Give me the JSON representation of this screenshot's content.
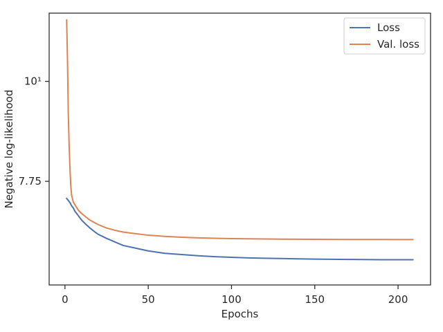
{
  "chart_data": {
    "type": "line",
    "title": "",
    "xlabel": "Epochs",
    "ylabel": "Negative log-likelihood",
    "xlim": [
      -9.5,
      219.5
    ],
    "ylim": [
      5.95,
      11.9
    ],
    "yscale": "log",
    "grid": false,
    "legend_position": "top-right",
    "x_ticks": [
      0,
      50,
      100,
      150,
      200
    ],
    "x_tick_labels": [
      "0",
      "50",
      "100",
      "150",
      "200"
    ],
    "y_ticks": [
      7.75,
      10
    ],
    "y_tick_labels": [
      "7.75",
      "10¹"
    ],
    "series": [
      {
        "name": "Loss",
        "color": "#4c72b0",
        "x": [
          1,
          2,
          3,
          4,
          5,
          6,
          7,
          8,
          10,
          12,
          15,
          18,
          20,
          25,
          30,
          35,
          40,
          45,
          50,
          55,
          60,
          70,
          80,
          90,
          100,
          110,
          120,
          130,
          140,
          150,
          160,
          170,
          180,
          190,
          200,
          209
        ],
        "y": [
          7.42,
          7.38,
          7.34,
          7.28,
          7.24,
          7.18,
          7.14,
          7.1,
          7.02,
          6.96,
          6.88,
          6.81,
          6.77,
          6.7,
          6.64,
          6.58,
          6.55,
          6.52,
          6.49,
          6.47,
          6.45,
          6.43,
          6.41,
          6.395,
          6.385,
          6.375,
          6.37,
          6.365,
          6.36,
          6.355,
          6.352,
          6.35,
          6.348,
          6.346,
          6.345,
          6.345
        ]
      },
      {
        "name": "Val. loss",
        "color": "#dd8452",
        "x": [
          1,
          1.5,
          2,
          2.5,
          3,
          3.5,
          4,
          5,
          6,
          7,
          8,
          10,
          12,
          15,
          18,
          20,
          25,
          30,
          35,
          40,
          50,
          60,
          70,
          80,
          90,
          100,
          110,
          120,
          130,
          140,
          150,
          160,
          170,
          180,
          190,
          200,
          209
        ],
        "y": [
          11.7,
          10.6,
          9.2,
          8.5,
          8.0,
          7.66,
          7.48,
          7.35,
          7.3,
          7.25,
          7.2,
          7.14,
          7.09,
          7.02,
          6.97,
          6.94,
          6.88,
          6.84,
          6.81,
          6.79,
          6.755,
          6.735,
          6.72,
          6.71,
          6.703,
          6.697,
          6.693,
          6.69,
          6.688,
          6.686,
          6.684,
          6.683,
          6.682,
          6.681,
          6.681,
          6.68,
          6.68
        ]
      }
    ]
  }
}
